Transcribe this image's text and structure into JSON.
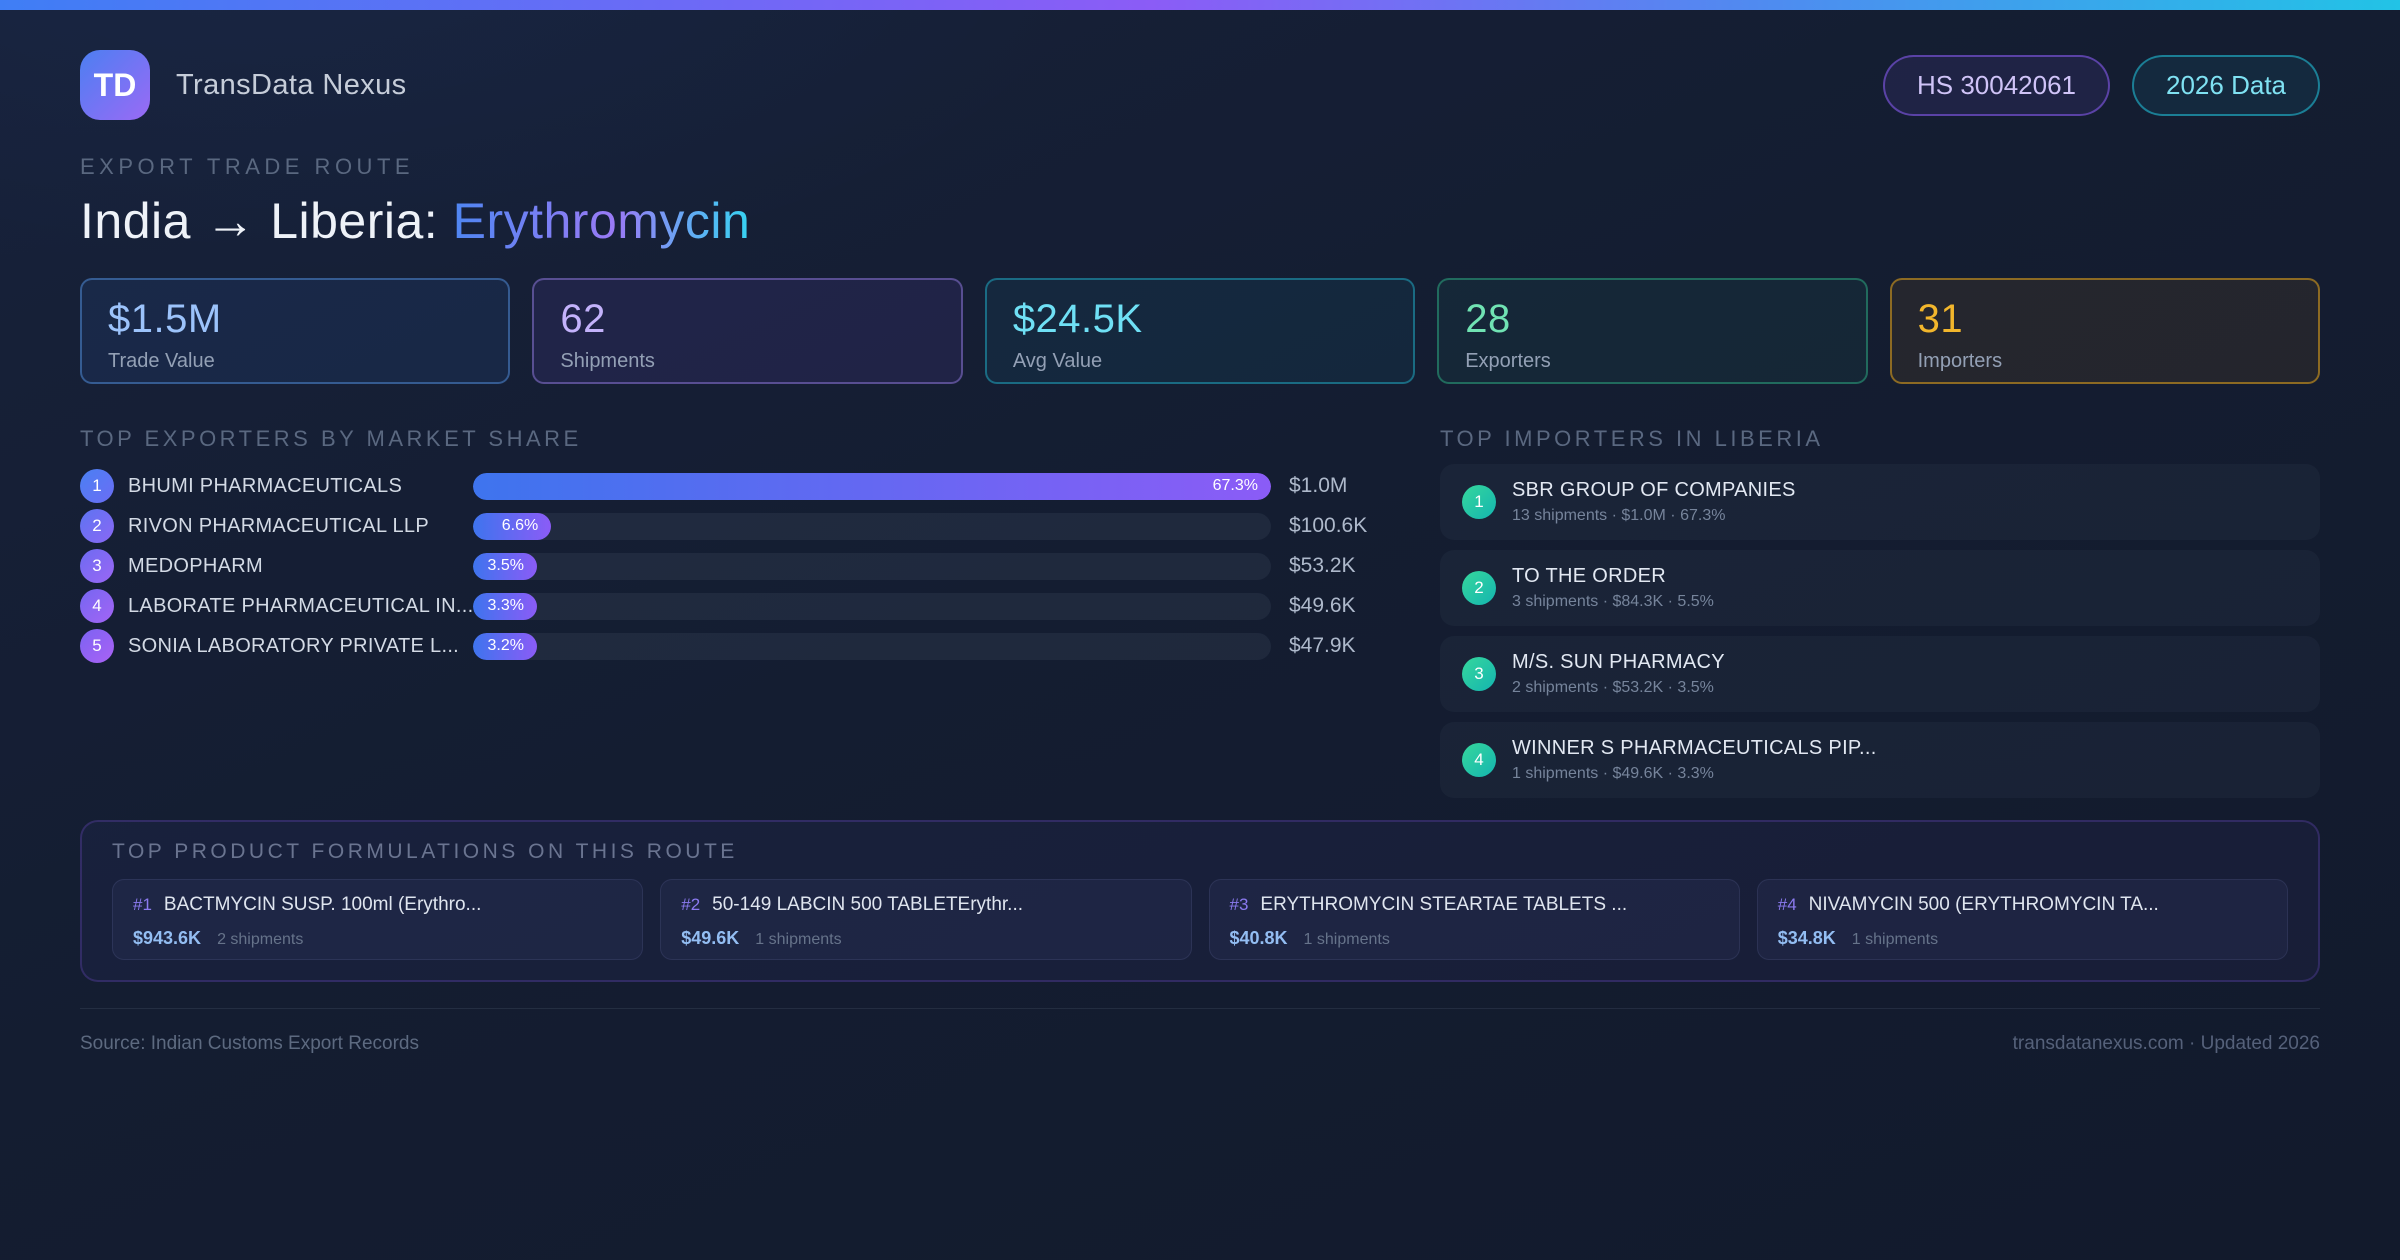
{
  "header": {
    "logo_text": "TD",
    "brand": "TransData Nexus",
    "hs_badge": "HS 30042061",
    "year_badge": "2026 Data"
  },
  "hero": {
    "eyebrow": "EXPORT TRADE ROUTE",
    "title_plain": "India → Liberia: ",
    "title_accent": "Erythromycin"
  },
  "stats": [
    {
      "value": "$1.5M",
      "label": "Trade Value"
    },
    {
      "value": "62",
      "label": "Shipments"
    },
    {
      "value": "$24.5K",
      "label": "Avg Value"
    },
    {
      "value": "28",
      "label": "Exporters"
    },
    {
      "value": "31",
      "label": "Importers"
    }
  ],
  "exporters": {
    "title": "TOP EXPORTERS BY MARKET SHARE",
    "rows": [
      {
        "rank": "1",
        "name": "BHUMI PHARMACEUTICALS",
        "share": "67.3%",
        "fill_pct": 100,
        "value": "$1.0M"
      },
      {
        "rank": "2",
        "name": "RIVON PHARMACEUTICAL LLP",
        "share": "6.6%",
        "fill_pct": 9.8,
        "value": "$100.6K"
      },
      {
        "rank": "3",
        "name": "MEDOPHARM",
        "share": "3.5%",
        "fill_pct": 5.2,
        "value": "$53.2K"
      },
      {
        "rank": "4",
        "name": "LABORATE PHARMACEUTICAL IN...",
        "share": "3.3%",
        "fill_pct": 4.9,
        "value": "$49.6K"
      },
      {
        "rank": "5",
        "name": "SONIA LABORATORY PRIVATE L...",
        "share": "3.2%",
        "fill_pct": 4.8,
        "value": "$47.9K"
      }
    ]
  },
  "importers": {
    "title": "TOP IMPORTERS IN LIBERIA",
    "rows": [
      {
        "rank": "1",
        "name": "SBR GROUP OF COMPANIES",
        "meta": "13 shipments · $1.0M · 67.3%"
      },
      {
        "rank": "2",
        "name": "TO THE ORDER",
        "meta": "3 shipments · $84.3K · 5.5%"
      },
      {
        "rank": "3",
        "name": "M/S. SUN PHARMACY",
        "meta": "2 shipments · $53.2K · 3.5%"
      },
      {
        "rank": "4",
        "name": "WINNER S PHARMACEUTICALS PIP...",
        "meta": "1 shipments · $49.6K · 3.3%"
      }
    ]
  },
  "products": {
    "title": "TOP PRODUCT FORMULATIONS ON THIS ROUTE",
    "cards": [
      {
        "rank": "#1",
        "name": "BACTMYCIN SUSP. 100ml (Erythro...",
        "value": "$943.6K",
        "shipments": "2 shipments"
      },
      {
        "rank": "#2",
        "name": "50-149 LABCIN 500 TABLETErythr...",
        "value": "$49.6K",
        "shipments": "1 shipments"
      },
      {
        "rank": "#3",
        "name": "ERYTHROMYCIN STEARTAE TABLETS ...",
        "value": "$40.8K",
        "shipments": "1 shipments"
      },
      {
        "rank": "#4",
        "name": "NIVAMYCIN 500 (ERYTHROMYCIN TA...",
        "value": "$34.8K",
        "shipments": "1 shipments"
      }
    ]
  },
  "footer": {
    "source": "Source: Indian Customs Export Records",
    "site": "transdatanexus.com · Updated 2026"
  },
  "accent_colors": {
    "topbar_blue": "#3f7ef5",
    "topbar_purple": "#8b5cf6",
    "topbar_cyan": "#22c3e6",
    "stat_blue": "#9cc3fb",
    "stat_purple": "#c3b2fb",
    "stat_cyan": "#6fe0f5",
    "stat_green": "#70e3b3",
    "stat_amber": "#f2b62c",
    "bar_gradient_start": "#3e74ee",
    "bar_gradient_end": "#8b5cf6",
    "importer_badge": "#14b8a6",
    "product_rank": "#8b7af0"
  }
}
